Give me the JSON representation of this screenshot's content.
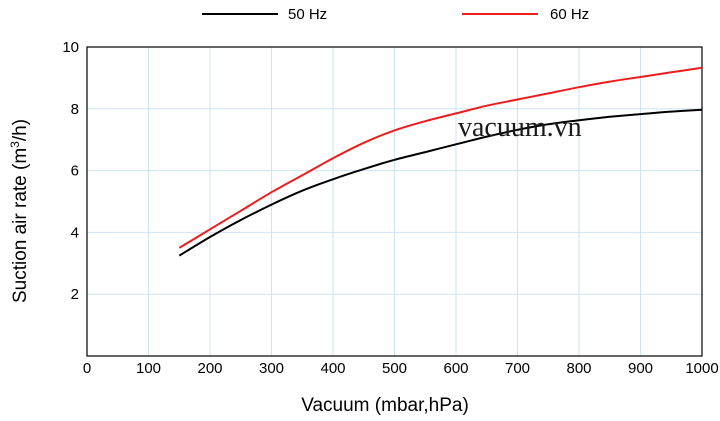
{
  "chart_data": {
    "type": "line",
    "title": "",
    "xlabel": "Vacuum (mbar,hPa)",
    "ylabel_main": "Suction air rate (m",
    "ylabel_sup": "3",
    "ylabel_tail": "/h)",
    "xlim": [
      0,
      1000
    ],
    "ylim": [
      0,
      10
    ],
    "x_ticks": [
      0,
      100,
      200,
      300,
      400,
      500,
      600,
      700,
      800,
      900,
      1000
    ],
    "y_ticks": [
      2,
      4,
      6,
      8,
      10
    ],
    "grid": true,
    "legend_position": "top",
    "series": [
      {
        "name": "50 Hz",
        "color": "#000000",
        "x": [
          150,
          200,
          250,
          300,
          350,
          400,
          450,
          500,
          550,
          600,
          650,
          700,
          750,
          800,
          850,
          900,
          950,
          1000
        ],
        "y": [
          3.25,
          3.85,
          4.4,
          4.9,
          5.35,
          5.72,
          6.05,
          6.35,
          6.6,
          6.85,
          7.1,
          7.32,
          7.5,
          7.63,
          7.74,
          7.83,
          7.91,
          7.97
        ]
      },
      {
        "name": "60 Hz",
        "color": "#ee1c1c",
        "x": [
          150,
          200,
          250,
          300,
          350,
          400,
          450,
          500,
          550,
          600,
          650,
          700,
          750,
          800,
          850,
          900,
          950,
          1000
        ],
        "y": [
          3.5,
          4.1,
          4.7,
          5.3,
          5.85,
          6.4,
          6.9,
          7.3,
          7.6,
          7.85,
          8.1,
          8.3,
          8.5,
          8.7,
          8.88,
          9.03,
          9.18,
          9.33
        ]
      }
    ],
    "watermark": "vacuum.vn"
  }
}
